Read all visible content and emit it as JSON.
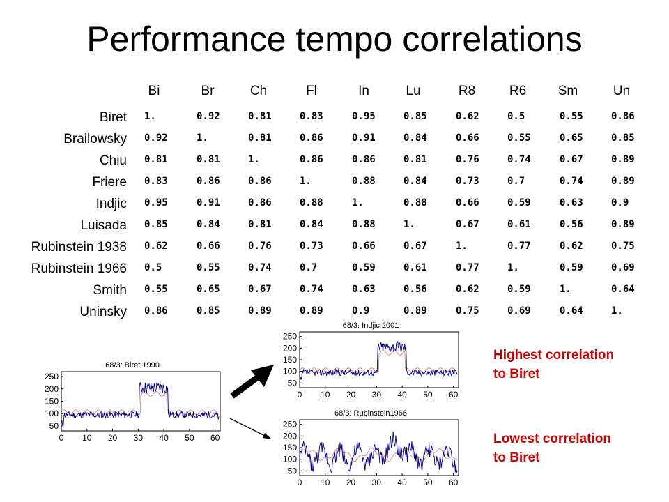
{
  "title": "Performance tempo correlations",
  "columns": [
    "Bi",
    "Br",
    "Ch",
    "Fl",
    "In",
    "Lu",
    "R8",
    "R6",
    "Sm",
    "Un"
  ],
  "rows": [
    {
      "label": "Biret",
      "values": [
        "1.",
        "0.92",
        "0.81",
        "0.83",
        "0.95",
        "0.85",
        "0.62",
        "0.5",
        "0.55",
        "0.86"
      ]
    },
    {
      "label": "Brailowsky",
      "values": [
        "0.92",
        "1.",
        "0.81",
        "0.86",
        "0.91",
        "0.84",
        "0.66",
        "0.55",
        "0.65",
        "0.85"
      ]
    },
    {
      "label": "Chiu",
      "values": [
        "0.81",
        "0.81",
        "1.",
        "0.86",
        "0.86",
        "0.81",
        "0.76",
        "0.74",
        "0.67",
        "0.89"
      ]
    },
    {
      "label": "Friere",
      "values": [
        "0.83",
        "0.86",
        "0.86",
        "1.",
        "0.88",
        "0.84",
        "0.73",
        "0.7",
        "0.74",
        "0.89"
      ]
    },
    {
      "label": "Indjic",
      "values": [
        "0.95",
        "0.91",
        "0.86",
        "0.88",
        "1.",
        "0.88",
        "0.66",
        "0.59",
        "0.63",
        "0.9"
      ]
    },
    {
      "label": "Luisada",
      "values": [
        "0.85",
        "0.84",
        "0.81",
        "0.84",
        "0.88",
        "1.",
        "0.67",
        "0.61",
        "0.56",
        "0.89"
      ]
    },
    {
      "label": "Rubinstein 1938",
      "values": [
        "0.62",
        "0.66",
        "0.76",
        "0.73",
        "0.66",
        "0.67",
        "1.",
        "0.77",
        "0.62",
        "0.75"
      ]
    },
    {
      "label": "Rubinstein 1966",
      "values": [
        "0.5",
        "0.55",
        "0.74",
        "0.7",
        "0.59",
        "0.61",
        "0.77",
        "1.",
        "0.59",
        "0.69"
      ]
    },
    {
      "label": "Smith",
      "values": [
        "0.55",
        "0.65",
        "0.67",
        "0.74",
        "0.63",
        "0.56",
        "0.62",
        "0.59",
        "1.",
        "0.64"
      ]
    },
    {
      "label": "Uninsky",
      "values": [
        "0.86",
        "0.85",
        "0.89",
        "0.89",
        "0.9",
        "0.89",
        "0.75",
        "0.69",
        "0.64",
        "1."
      ]
    }
  ],
  "chart_data": [
    {
      "type": "line",
      "title": "68/3: Biret 1990",
      "xlim": [
        0,
        62
      ],
      "ylim": [
        30,
        270
      ],
      "xticks": [
        0,
        10,
        20,
        30,
        40,
        50,
        60
      ],
      "yticks": [
        50,
        100,
        150,
        200,
        250
      ],
      "series_colors": [
        "#000080",
        "#e07070"
      ]
    },
    {
      "type": "line",
      "title": "68/3: Indjic 2001",
      "xlim": [
        0,
        62
      ],
      "ylim": [
        30,
        270
      ],
      "xticks": [
        0,
        10,
        20,
        30,
        40,
        50,
        60
      ],
      "yticks": [
        50,
        100,
        150,
        200,
        250
      ],
      "series_colors": [
        "#000080",
        "#e07070"
      ]
    },
    {
      "type": "line",
      "title": "68/3: Rubinstein1966",
      "xlim": [
        0,
        62
      ],
      "ylim": [
        30,
        270
      ],
      "xticks": [
        0,
        10,
        20,
        30,
        40,
        50,
        60
      ],
      "yticks": [
        50,
        100,
        150,
        200,
        250
      ],
      "series_colors": [
        "#000080",
        "#e07070"
      ]
    }
  ],
  "notes": {
    "highest": [
      "Highest correlation",
      "to Biret"
    ],
    "lowest": [
      "Lowest correlation",
      "to Biret"
    ],
    "color": "#c00000"
  },
  "arrow_color": "#000000"
}
